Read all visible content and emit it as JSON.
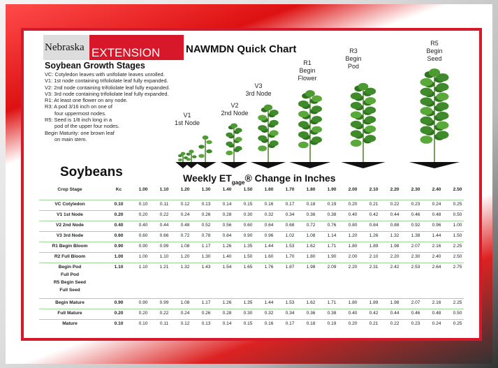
{
  "logo": {
    "top": "Nebraska",
    "bottom": "EXTENSION"
  },
  "title": "NAWMDN Quick Chart",
  "stages_heading": "Soybean Growth Stages",
  "stage_notes": [
    "VC: Cotyledon leaves with unifoliate leaves unrolled.",
    "V1: 1st node containing trifoliolate leaf fully expanded.",
    "V2: 2nd node containing trifoliolate leaf fully expanded.",
    "V3: 3rd node containing trifoliolate leaf fully expanded.",
    "R1: At least one flower on any node.",
    "R3:  A pod 3/16 inch on one of",
    "four uppermost nodes.",
    "R5:  Seed is 1/8 inch long in a",
    "pod of the upper four nodes.",
    "Begin Maturity: one brown leaf",
    "on main stem."
  ],
  "plant_labels": [
    [
      "V1",
      "1st Node"
    ],
    [
      "V2",
      "2nd Node"
    ],
    [
      "V3",
      "3rd Node"
    ],
    [
      "R1",
      "Begin",
      "Flower"
    ],
    [
      "R3",
      "Begin",
      "Pod"
    ],
    [
      "R5",
      "Begin",
      "Seed"
    ]
  ],
  "crop": "Soybeans",
  "table_title": {
    "prefix": "Weekly ET",
    "subscript": "gage",
    "suffix": "® Change in Inches"
  },
  "table": {
    "header": [
      "Crop Stage",
      "Kc",
      "1.00",
      "1.10",
      "1.20",
      "1.30",
      "1.40",
      "1.50",
      "1.60",
      "1.70",
      "1.80",
      "1.90",
      "2.00",
      "2.10",
      "2.20",
      "2.30",
      "2.40",
      "2.50"
    ],
    "rows": [
      {
        "stage": [
          "VC Cotyledon"
        ],
        "kc": "0.10",
        "values": [
          "0.10",
          "0.11",
          "0.12",
          "0.13",
          "0.14",
          "0.15",
          "0.16",
          "0.17",
          "0.18",
          "0.19",
          "0.20",
          "0.21",
          "0.22",
          "0.23",
          "0.24",
          "0.25"
        ]
      },
      {
        "stage": [
          "V1 1st Node"
        ],
        "kc": "0.20",
        "values": [
          "0.20",
          "0.22",
          "0.24",
          "0.26",
          "0.28",
          "0.30",
          "0.32",
          "0.34",
          "0.36",
          "0.38",
          "0.40",
          "0.42",
          "0.44",
          "0.46",
          "0.48",
          "0.50"
        ]
      },
      {
        "stage": [
          "V2 2nd Node"
        ],
        "kc": "0.40",
        "values": [
          "0.40",
          "0.44",
          "0.48",
          "0.52",
          "0.56",
          "0.60",
          "0.64",
          "0.68",
          "0.72",
          "0.76",
          "0.80",
          "0.84",
          "0.88",
          "0.92",
          "0.96",
          "1.00"
        ]
      },
      {
        "stage": [
          "V3 3rd Node"
        ],
        "kc": "0.60",
        "values": [
          "0.60",
          "0.66",
          "0.72",
          "0.78",
          "0.84",
          "0.90",
          "0.96",
          "1.02",
          "1.08",
          "1.14",
          "1.20",
          "1.26",
          "1.32",
          "1.38",
          "1.44",
          "1.50"
        ]
      },
      {
        "stage": [
          "R1 Begin Bloom"
        ],
        "kc": "0.90",
        "values": [
          "0.90",
          "0.99",
          "1.08",
          "1.17",
          "1.26",
          "1.35",
          "1.44",
          "1.53",
          "1.62",
          "1.71",
          "1.80",
          "1.89",
          "1.98",
          "2.07",
          "2.16",
          "2.25"
        ]
      },
      {
        "stage": [
          "R2 Full Bloom"
        ],
        "kc": "1.00",
        "values": [
          "1.00",
          "1.10",
          "1.20",
          "1.30",
          "1.40",
          "1.50",
          "1.60",
          "1.70",
          "1.80",
          "1.90",
          "2.00",
          "2.10",
          "2.20",
          "2.30",
          "2.40",
          "2.50"
        ]
      },
      {
        "stage": [
          "Begin Pod",
          "Full Pod",
          "R5 Begin Seed",
          "Full Seed"
        ],
        "kc": "1.10",
        "values": [
          "1.10",
          "1.21",
          "1.32",
          "1.43",
          "1.54",
          "1.65",
          "1.76",
          "1.87",
          "1.98",
          "2.09",
          "2.20",
          "2.31",
          "2.42",
          "2.53",
          "2.64",
          "2.75"
        ]
      },
      {
        "stage": [
          "Begin Mature"
        ],
        "kc": "0.90",
        "values": [
          "0.90",
          "0.99",
          "1.08",
          "1.17",
          "1.26",
          "1.35",
          "1.44",
          "1.53",
          "1.62",
          "1.71",
          "1.80",
          "1.89",
          "1.98",
          "2.07",
          "2.16",
          "2.25"
        ]
      },
      {
        "stage": [
          "Full Mature"
        ],
        "kc": "0.20",
        "values": [
          "0.20",
          "0.22",
          "0.24",
          "0.26",
          "0.28",
          "0.30",
          "0.32",
          "0.34",
          "0.36",
          "0.38",
          "0.40",
          "0.42",
          "0.44",
          "0.46",
          "0.48",
          "0.50"
        ]
      },
      {
        "stage": [
          "Mature"
        ],
        "kc": "0.10",
        "values": [
          "0.10",
          "0.11",
          "0.12",
          "0.13",
          "0.14",
          "0.15",
          "0.16",
          "0.17",
          "0.18",
          "0.19",
          "0.20",
          "0.21",
          "0.22",
          "0.23",
          "0.24",
          "0.25"
        ]
      }
    ]
  }
}
